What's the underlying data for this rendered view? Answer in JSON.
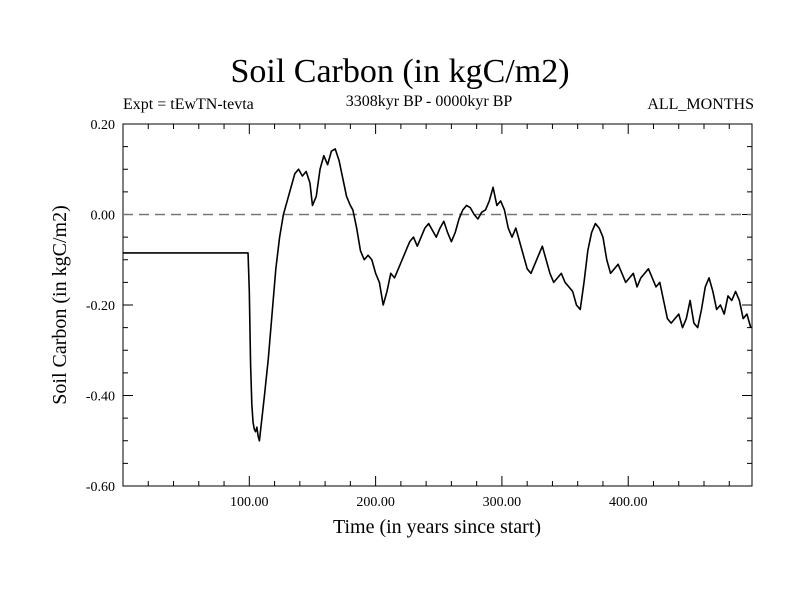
{
  "header": {
    "title": "Soil Carbon (in kgC/m2)",
    "experiment": "Expt = tEwTN-tevta",
    "period": "3308kyr BP - 0000kyr BP",
    "months": "ALL_MONTHS"
  },
  "chart_data": {
    "type": "line",
    "title": "Soil Carbon (in kgC/m2)",
    "xlabel": "Time (in years since start)",
    "ylabel": "Soil Carbon (in kgC/m2)",
    "xlim": [
      0,
      498
    ],
    "ylim": [
      -0.6,
      0.2
    ],
    "x_ticks": [
      100,
      200,
      300,
      400
    ],
    "x_tick_labels": [
      "100.00",
      "200.00",
      "300.00",
      "400.00"
    ],
    "y_ticks": [
      0.2,
      0,
      -0.2,
      -0.4,
      -0.6
    ],
    "y_tick_labels": [
      "0.20",
      "0.00",
      "-0.20",
      "-0.40",
      "-0.60"
    ],
    "reference_line": {
      "y": 0.0,
      "style": "dashed"
    },
    "series": [
      {
        "name": "Soil Carbon",
        "x": [
          0,
          99,
          100,
          101,
          102,
          103,
          104,
          105,
          106,
          107,
          108,
          110,
          112,
          115,
          118,
          121,
          124,
          127,
          130,
          133,
          136,
          139,
          142,
          145,
          148,
          150,
          153,
          156,
          159,
          162,
          165,
          168,
          171,
          174,
          177,
          180,
          182,
          185,
          188,
          191,
          194,
          197,
          200,
          203,
          206,
          209,
          212,
          215,
          218,
          221,
          224,
          227,
          230,
          233,
          236,
          239,
          242,
          245,
          248,
          251,
          254,
          257,
          260,
          263,
          266,
          269,
          272,
          275,
          278,
          281,
          284,
          287,
          290,
          293,
          296,
          299,
          302,
          305,
          308,
          311,
          314,
          317,
          320,
          323,
          326,
          329,
          332,
          335,
          338,
          341,
          344,
          347,
          350,
          353,
          356,
          359,
          362,
          365,
          368,
          371,
          374,
          377,
          380,
          383,
          386,
          389,
          392,
          395,
          398,
          401,
          404,
          407,
          410,
          413,
          416,
          419,
          422,
          425,
          428,
          431,
          434,
          437,
          440,
          443,
          446,
          449,
          452,
          455,
          458,
          461,
          464,
          467,
          470,
          473,
          476,
          479,
          482,
          485,
          488,
          491,
          494,
          497
        ],
        "y": [
          -0.085,
          -0.085,
          -0.17,
          -0.33,
          -0.42,
          -0.46,
          -0.475,
          -0.48,
          -0.47,
          -0.49,
          -0.5,
          -0.45,
          -0.4,
          -0.32,
          -0.22,
          -0.12,
          -0.05,
          0.0,
          0.03,
          0.06,
          0.09,
          0.1,
          0.085,
          0.095,
          0.07,
          0.02,
          0.04,
          0.1,
          0.13,
          0.11,
          0.14,
          0.145,
          0.12,
          0.08,
          0.04,
          0.02,
          0.01,
          -0.03,
          -0.08,
          -0.1,
          -0.09,
          -0.1,
          -0.13,
          -0.15,
          -0.2,
          -0.17,
          -0.13,
          -0.14,
          -0.12,
          -0.1,
          -0.08,
          -0.06,
          -0.05,
          -0.07,
          -0.05,
          -0.03,
          -0.02,
          -0.035,
          -0.05,
          -0.03,
          -0.015,
          -0.04,
          -0.06,
          -0.04,
          -0.01,
          0.01,
          0.02,
          0.015,
          0.0,
          -0.01,
          0.005,
          0.01,
          0.03,
          0.06,
          0.02,
          0.03,
          0.01,
          -0.03,
          -0.05,
          -0.03,
          -0.06,
          -0.09,
          -0.12,
          -0.13,
          -0.11,
          -0.09,
          -0.07,
          -0.1,
          -0.13,
          -0.15,
          -0.14,
          -0.13,
          -0.15,
          -0.16,
          -0.17,
          -0.2,
          -0.21,
          -0.15,
          -0.08,
          -0.04,
          -0.02,
          -0.03,
          -0.05,
          -0.1,
          -0.13,
          -0.12,
          -0.11,
          -0.13,
          -0.15,
          -0.14,
          -0.13,
          -0.16,
          -0.14,
          -0.13,
          -0.12,
          -0.14,
          -0.16,
          -0.15,
          -0.19,
          -0.23,
          -0.24,
          -0.23,
          -0.22,
          -0.25,
          -0.23,
          -0.19,
          -0.24,
          -0.25,
          -0.21,
          -0.16,
          -0.14,
          -0.17,
          -0.21,
          -0.2,
          -0.22,
          -0.18,
          -0.19,
          -0.17,
          -0.19,
          -0.23,
          -0.22,
          -0.25
        ]
      }
    ]
  }
}
